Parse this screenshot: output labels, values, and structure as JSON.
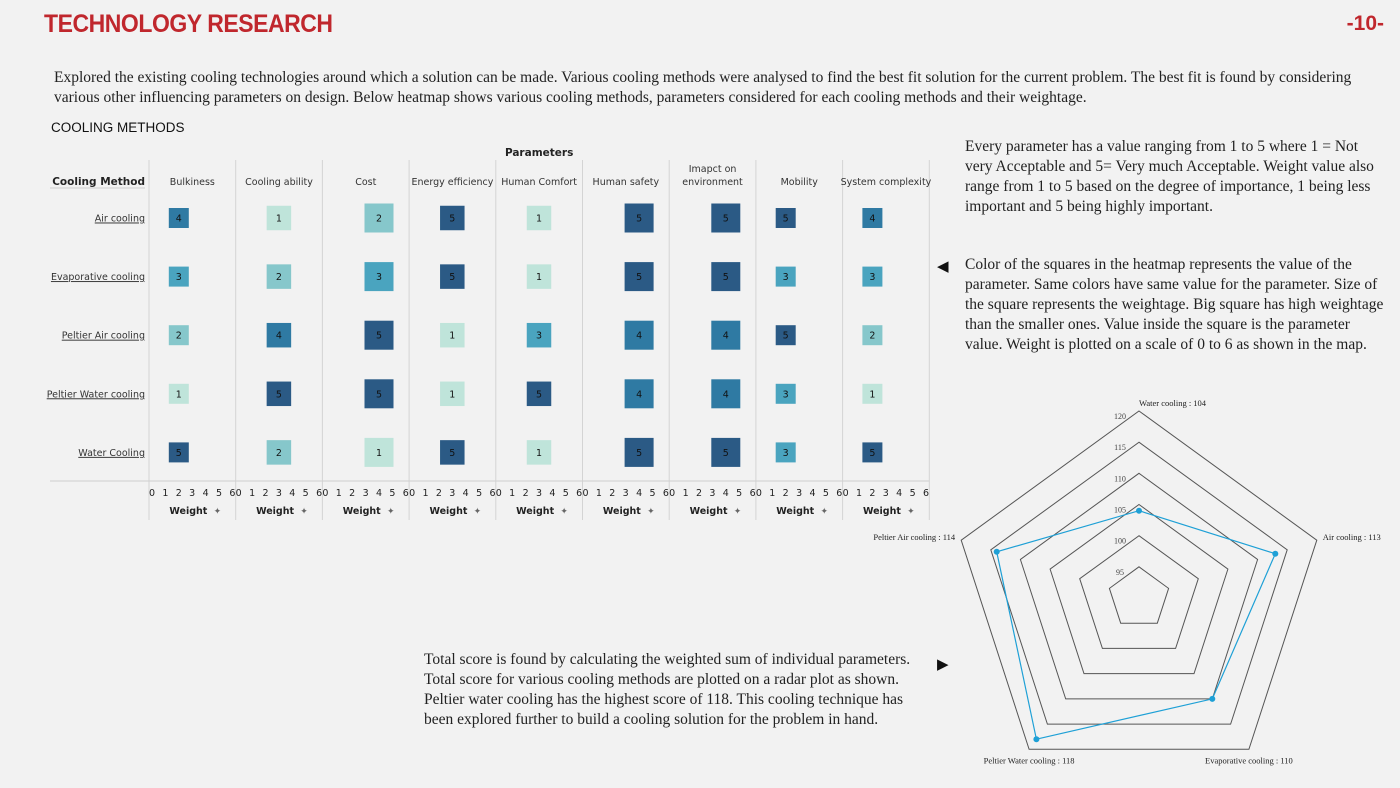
{
  "header": {
    "title": "TECHNOLOGY RESEARCH",
    "page_number": "-10-"
  },
  "intro": "Explored the existing cooling technologies around which  a solution can be made. Various cooling methods were analysed to find the best fit solution for the current problem. The best fit is found by considering various other influencing parameters on design. Below heatmap shows various cooling methods, parameters considered for each cooling methods and their weightage.",
  "section_title": "COOLING METHODS",
  "notes": {
    "value_scale": "Every parameter has a value ranging from 1 to 5 where  1 = Not very  Acceptable and 5= Very much  Acceptable. Weight value also range from 1 to 5 based on the degree of importance, 1 being less important and 5 being highly important.",
    "color_meaning": "Color of the squares in the heatmap represents the value of the parameter. Same colors have same value for the parameter. Size of the square represents the weightage. Big square has high weightage than the smaller ones. Value inside the square is the parameter value. Weight is plotted on a scale of 0 to 6 as shown in the map.",
    "total_score": "Total score is found by calculating the weighted sum of individual parameters. Total score for various cooling methods are plotted on a radar plot as shown. Peltier water cooling has the highest score of 118. This cooling technique has been explored further to build a cooling solution for the problem in hand."
  },
  "colors": {
    "title": "#c0272d",
    "v1": "#bfe4da",
    "v2": "#86c7cb",
    "v3": "#4aa4bf",
    "v4": "#2f7aa3",
    "v5": "#2b5a85",
    "radar_line": "#1ea0d6"
  },
  "chart_data": [
    {
      "type": "heatmap",
      "title": "",
      "column_group_label": "Parameters",
      "row_header": "Cooling Method",
      "columns": [
        "Bulkiness",
        "Cooling ability",
        "Cost",
        "Energy efficiency",
        "Human Comfort",
        "Human safety",
        "Imapct on environment",
        "Mobility",
        "System complexity"
      ],
      "rows": [
        "Air cooling",
        "Evaporative cooling",
        "Peltier Air cooling",
        "Peltier Water cooling",
        "Water Cooling"
      ],
      "values": [
        [
          4,
          1,
          2,
          5,
          1,
          5,
          5,
          5,
          4
        ],
        [
          3,
          2,
          3,
          5,
          1,
          5,
          5,
          3,
          3
        ],
        [
          2,
          4,
          5,
          1,
          3,
          4,
          4,
          5,
          2
        ],
        [
          1,
          5,
          5,
          1,
          5,
          4,
          4,
          3,
          1
        ],
        [
          5,
          2,
          1,
          5,
          1,
          5,
          5,
          3,
          5
        ]
      ],
      "weights": [
        2,
        3,
        4,
        3,
        3,
        4,
        4,
        2,
        2
      ],
      "x_axis_label": "Weight",
      "x_ticks": [
        "0",
        "1",
        "2",
        "3",
        "4",
        "5",
        "6"
      ],
      "xlim": [
        0,
        6
      ]
    },
    {
      "type": "radar",
      "title": "",
      "axes": [
        "Water cooling : 104",
        "Air cooling : 113",
        "Evaporative cooling : 110",
        "Peltier Water cooling : 118",
        "Peltier Air cooling : 114"
      ],
      "values": [
        104,
        113,
        110,
        118,
        114
      ],
      "rlim": [
        95,
        120
      ],
      "ring_values": [
        95,
        100,
        105,
        110,
        115,
        120
      ],
      "ring_labels": [
        "95",
        "100",
        "105",
        "110",
        "115",
        "120"
      ]
    }
  ]
}
